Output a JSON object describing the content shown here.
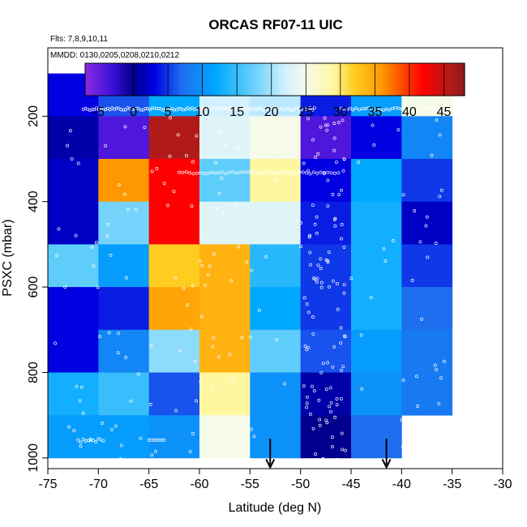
{
  "chart_data": {
    "type": "heatmap",
    "title": "ORCAS RF07-11 UIC",
    "flights_note": "Flts: 7,8,9,10,11",
    "dates_note": "MMDD: 0130,0205,0208,0210,0212",
    "xlabel": "Latitude (deg N)",
    "ylabel": "PSXC (mbar)",
    "xlim": [
      -75,
      -30
    ],
    "ylim": [
      1025,
      40
    ],
    "y_inverted": true,
    "x_ticks": [
      -75,
      -70,
      -65,
      -60,
      -55,
      -50,
      -45,
      -40,
      -35,
      -30
    ],
    "x_tick_labels": [
      "-75",
      "-70",
      "-65",
      "-60",
      "-55",
      "-50",
      "-45",
      "-40",
      "-35",
      "-30"
    ],
    "y_ticks": [
      200,
      400,
      600,
      800,
      1000
    ],
    "y_tick_labels": [
      "200",
      "400",
      "600",
      "800",
      "1000"
    ],
    "colorbar": {
      "range": [
        -7,
        48
      ],
      "ticks": [
        -5,
        0,
        5,
        10,
        15,
        20,
        25,
        30,
        35,
        40,
        45
      ],
      "tick_labels": [
        "-5",
        "0",
        "5",
        "10",
        "15",
        "20",
        "25",
        "30",
        "35",
        "40",
        "45"
      ],
      "separators": [
        0,
        5,
        10,
        15,
        20,
        25,
        30,
        35,
        40,
        45
      ],
      "stops": [
        {
          "v": -7,
          "c": "#8a2be2"
        },
        {
          "v": -3,
          "c": "#3a10d8"
        },
        {
          "v": 0,
          "c": "#00008c"
        },
        {
          "v": 3,
          "c": "#0000e0"
        },
        {
          "v": 7,
          "c": "#1e6ff0"
        },
        {
          "v": 12,
          "c": "#00a8ff"
        },
        {
          "v": 17,
          "c": "#5fcdfb"
        },
        {
          "v": 22,
          "c": "#d2f0ff"
        },
        {
          "v": 25,
          "c": "#f5fbe8"
        },
        {
          "v": 29,
          "c": "#fff7a0"
        },
        {
          "v": 32,
          "c": "#ffcc20"
        },
        {
          "v": 36,
          "c": "#ff9800"
        },
        {
          "v": 39,
          "c": "#ff4a00"
        },
        {
          "v": 42,
          "c": "#ff0000"
        },
        {
          "v": 46,
          "c": "#b21a1a"
        },
        {
          "v": 48,
          "c": "#8c1a1a"
        }
      ]
    },
    "lat_bins": [
      -75,
      -70,
      -65,
      -60,
      -55,
      -50,
      -45,
      -40,
      -35
    ],
    "p_bins": [
      100,
      200,
      300,
      400,
      500,
      600,
      700,
      800,
      900,
      1000
    ],
    "cells": [
      [
        3,
        6,
        12,
        22,
        21,
        4,
        11,
        25
      ],
      [
        1,
        -4,
        46,
        23,
        25,
        -4,
        3,
        9
      ],
      [
        2,
        36,
        42,
        17,
        29,
        3,
        12,
        5
      ],
      [
        2,
        18,
        42,
        23,
        23,
        4,
        13,
        2
      ],
      [
        17,
        11,
        32,
        34,
        14,
        5,
        13,
        5
      ],
      [
        3,
        4,
        35,
        34,
        12,
        5,
        13,
        7
      ],
      [
        3,
        9,
        19,
        34,
        17,
        6,
        11,
        8
      ],
      [
        13,
        15,
        6,
        29,
        10,
        1,
        10,
        8
      ],
      [
        11,
        11,
        10,
        25,
        10,
        0,
        7,
        null
      ]
    ],
    "arrows": [
      -53,
      -41.5
    ],
    "legend": "colorbar top"
  }
}
